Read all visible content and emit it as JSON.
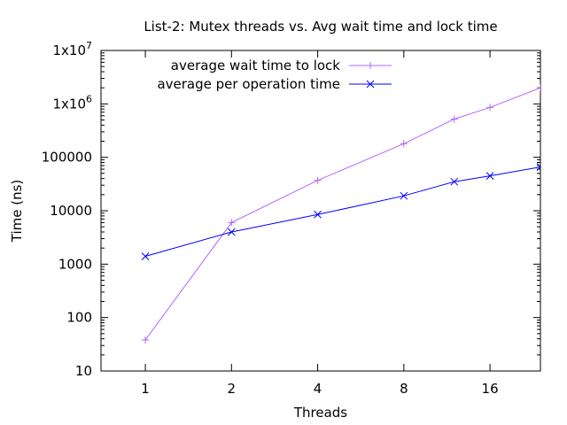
{
  "chart_data": {
    "type": "line",
    "title": "List-2: Mutex threads vs. Avg wait time and lock time",
    "xlabel": "Threads",
    "ylabel": "Time (ns)",
    "x_scale": "log2",
    "y_scale": "log10",
    "xlim": [
      0.7,
      24
    ],
    "ylim": [
      10,
      10000000
    ],
    "x_ticks": [
      {
        "value": 1,
        "label": "1"
      },
      {
        "value": 2,
        "label": "2"
      },
      {
        "value": 4,
        "label": "4"
      },
      {
        "value": 8,
        "label": "8"
      },
      {
        "value": 16,
        "label": "16"
      }
    ],
    "y_ticks": [
      {
        "value": 10,
        "label": "10",
        "sup": ""
      },
      {
        "value": 100,
        "label": "100",
        "sup": ""
      },
      {
        "value": 1000,
        "label": "1000",
        "sup": ""
      },
      {
        "value": 10000,
        "label": "10000",
        "sup": ""
      },
      {
        "value": 100000,
        "label": "100000",
        "sup": ""
      },
      {
        "value": 1000000,
        "label": "1x10",
        "sup": "6"
      },
      {
        "value": 10000000,
        "label": "1x10",
        "sup": "7"
      }
    ],
    "grid": false,
    "legend_position": "top-left",
    "series": [
      {
        "name": "average wait time to lock",
        "color": "#b266ff",
        "marker": "plus",
        "x": [
          1,
          2,
          4,
          8,
          12,
          16,
          24
        ],
        "values": [
          38,
          6000,
          37000,
          180000,
          520000,
          860000,
          2000000
        ]
      },
      {
        "name": "average per operation time",
        "color": "#0000ff",
        "marker": "cross",
        "x": [
          1,
          2,
          4,
          8,
          12,
          16,
          24
        ],
        "values": [
          1400,
          4000,
          8500,
          19000,
          35000,
          45000,
          66000
        ]
      }
    ]
  }
}
